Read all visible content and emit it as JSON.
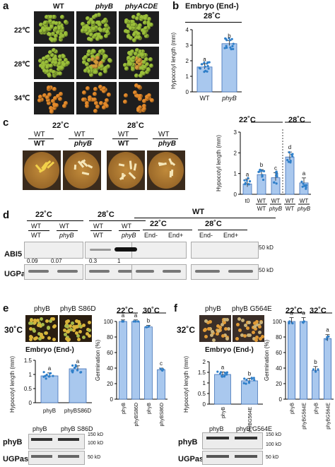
{
  "panel_a": {
    "label": "a",
    "columns": [
      "WT",
      "phyB",
      "phyACDE"
    ],
    "rows": [
      "22℃",
      "28℃",
      "34℃"
    ],
    "colors": {
      "green_seed": "#9bbf3a",
      "orange_seed": "#e38a2b",
      "bg": "#1e1e1e"
    }
  },
  "panel_b": {
    "label": "b",
    "title": "Embryo (End-)",
    "temp": "28˚C",
    "ylabel": "Hypocotyl length (mm)",
    "letters": [
      "a",
      "b"
    ]
  },
  "panel_c": {
    "label": "c",
    "temps": [
      "22˚C",
      "28˚C"
    ],
    "photo_temps": [
      "22˚C",
      "28˚C"
    ],
    "photo_labels": [
      {
        "top": "WT",
        "bottom": "WT"
      },
      {
        "top": "WT",
        "bottom": "phyB"
      },
      {
        "top": "WT",
        "bottom": "WT"
      },
      {
        "top": "WT",
        "bottom": "phyB"
      }
    ],
    "ylabel": "Hypocotyl length (mm)",
    "letters": [
      "a",
      "b",
      "c",
      "d",
      "a"
    ],
    "t0": "t0"
  },
  "panel_d": {
    "label": "d",
    "groups": [
      {
        "temp": "22˚C",
        "lanes": [
          {
            "top": "WT",
            "bottom": "WT"
          },
          {
            "top": "WT",
            "bottom": "phyB"
          }
        ]
      },
      {
        "temp": "28˚C",
        "lanes": [
          {
            "top": "WT",
            "bottom": "WT"
          },
          {
            "top": "WT",
            "bottom": "phyB"
          }
        ]
      }
    ],
    "wt_header": "WT",
    "wt_groups": [
      {
        "temp": "22˚C",
        "lanes": [
          "End-",
          "End+"
        ]
      },
      {
        "temp": "28˚C",
        "lanes": [
          "End-",
          "End+"
        ]
      }
    ],
    "row1": "ABI5",
    "row2": "UGPase",
    "quant": [
      "0.09",
      "0.07",
      "0.3",
      "1"
    ],
    "mw1": "50 kD",
    "mw2": "50 kD"
  },
  "panel_e": {
    "label": "e",
    "temp": "30˚C",
    "photo_labels": [
      "phyB",
      "phyB S86D"
    ],
    "embryo_title": "Embryo (End-)",
    "ylabel": "Hypocotyl length (mm)",
    "letters_hyp": [
      "a",
      "a"
    ],
    "germ_temps": [
      "22˚C",
      "30˚C"
    ],
    "germ_ylabel": "Germination (%)",
    "letters_germ": [
      "a",
      "a",
      "b",
      "c"
    ],
    "blot_labels": [
      "phyB",
      "phyB S86D"
    ],
    "row1": "phyB",
    "row2": "UGPase",
    "mw": [
      "150 kD",
      "100 kD",
      "50 kD"
    ]
  },
  "panel_f": {
    "label": "f",
    "temp": "32˚C",
    "photo_labels": [
      "phyB",
      "phyB G564E"
    ],
    "embryo_title": "Embryo (End-)",
    "ylabel": "Hypocotyl length (mm)",
    "letters_hyp": [
      "a",
      "b"
    ],
    "germ_temps": [
      "22˚C",
      "32˚C"
    ],
    "germ_ylabel": "Germination (%)",
    "letters_germ": [
      "a",
      "a",
      "b",
      "a"
    ],
    "blot_labels": [
      "phyB",
      "phyB G564E"
    ],
    "row1": "phyB",
    "row2": "UGPase",
    "mw": [
      "150 kD",
      "100 kD",
      "50 kD"
    ]
  },
  "chart_data": [
    {
      "type": "bar",
      "id": "b",
      "categories": [
        "WT",
        "phyB"
      ],
      "values": [
        1.6,
        3.1
      ],
      "ylim": [
        0,
        4
      ],
      "yticks": [
        0,
        1,
        2,
        3,
        4
      ],
      "ylabel": "Hypocotyl length (mm)"
    },
    {
      "type": "bar",
      "id": "c",
      "categories": [
        "t0",
        "WT/WT 22",
        "WT/phyB 22",
        "WT/WT 28",
        "WT/phyB 28"
      ],
      "values": [
        0.5,
        0.95,
        0.8,
        1.8,
        0.55
      ],
      "ylim": [
        0,
        3
      ],
      "yticks": [
        0,
        1,
        2,
        3
      ],
      "ylabel": "Hypocotyl length (mm)"
    },
    {
      "type": "bar",
      "id": "e_hyp",
      "categories": [
        "phyB",
        "phyBS86D"
      ],
      "values": [
        0.95,
        1.2
      ],
      "ylim": [
        0,
        1.5
      ],
      "yticks": [
        0,
        0.5,
        1.0,
        1.5
      ],
      "ylabel": "Hypocotyl length (mm)"
    },
    {
      "type": "bar",
      "id": "e_germ",
      "categories": [
        "phyB",
        "phyBS86D",
        "phyB",
        "phyBS86D"
      ],
      "values": [
        100,
        100,
        93,
        38
      ],
      "ylim": [
        0,
        100
      ],
      "yticks": [
        0,
        20,
        40,
        60,
        80,
        100
      ],
      "ylabel": "Germination (%)"
    },
    {
      "type": "bar",
      "id": "f_hyp",
      "categories": [
        "phyB",
        "phyBG564E"
      ],
      "values": [
        1.4,
        1.1
      ],
      "ylim": [
        0,
        2.0
      ],
      "yticks": [
        0,
        0.5,
        1.0,
        1.5,
        2.0
      ],
      "ylabel": "Hypocotyl length (mm)"
    },
    {
      "type": "bar",
      "id": "f_germ",
      "categories": [
        "phyB",
        "phyBG564E",
        "phyB",
        "phyBG564E"
      ],
      "values": [
        100,
        100,
        37,
        78
      ],
      "ylim": [
        0,
        100
      ],
      "yticks": [
        0,
        20,
        40,
        60,
        80,
        100
      ],
      "ylabel": "Germination (%)"
    }
  ]
}
